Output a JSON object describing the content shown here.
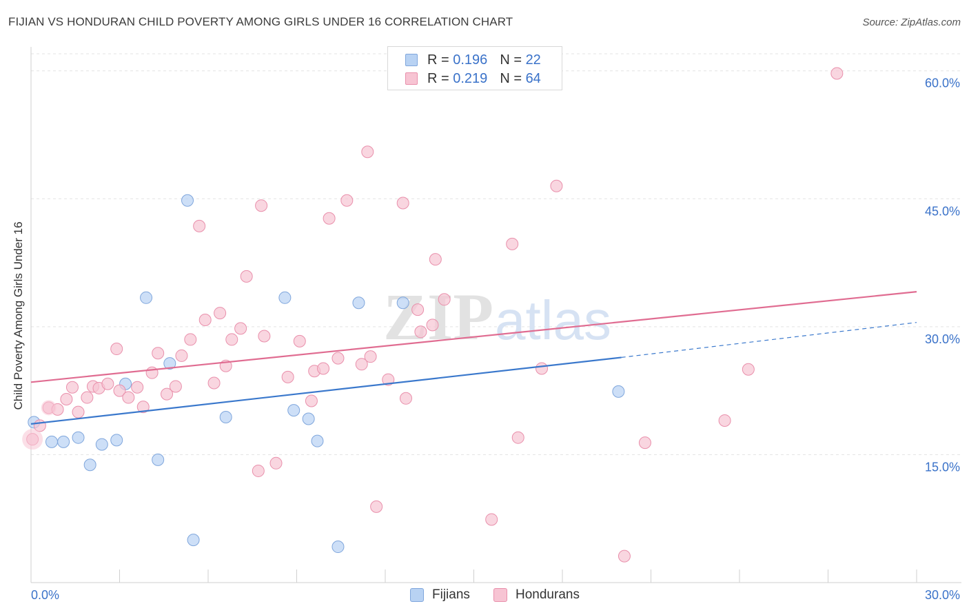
{
  "title": "FIJIAN VS HONDURAN CHILD POVERTY AMONG GIRLS UNDER 16 CORRELATION CHART",
  "source": "Source: ZipAtlas.com",
  "watermark": {
    "zip": "ZIP",
    "atlas": "atlas"
  },
  "legend": {
    "rows": [
      {
        "r_label": "R =",
        "r_value": "0.196",
        "n_label": "N =",
        "n_value": "22"
      },
      {
        "r_label": "R =",
        "r_value": "0.219",
        "n_label": "N =",
        "n_value": "64"
      }
    ]
  },
  "bottom_legend": [
    "Fijians",
    "Hondurans"
  ],
  "colors": {
    "fijian_fill": "#b8d2f3",
    "fijian_stroke": "#7fa6dc",
    "fijian_line": "#3a78cc",
    "honduran_fill": "#f7c4d3",
    "honduran_stroke": "#e98fab",
    "honduran_line": "#e06c91",
    "tick_label": "#3a72c9",
    "grid": "#e3e3e3"
  },
  "chart_data": {
    "type": "scatter",
    "title": "FIJIAN VS HONDURAN CHILD POVERTY AMONG GIRLS UNDER 16 CORRELATION CHART",
    "xlabel": "",
    "ylabel": "Child Poverty Among Girls Under 16",
    "xlim": [
      0,
      30
    ],
    "ylim": [
      0,
      62
    ],
    "x_tick_labels": [
      "0.0%",
      "30.0%"
    ],
    "y_ticks": [
      15,
      30,
      45,
      60
    ],
    "y_tick_labels": [
      "15.0%",
      "30.0%",
      "45.0%",
      "60.0%"
    ],
    "grid": true,
    "legend_position": "top-center",
    "series": [
      {
        "name": "Fijians",
        "points": [
          [
            0.1,
            18.8
          ],
          [
            0.7,
            16.5
          ],
          [
            1.1,
            16.5
          ],
          [
            1.6,
            17.0
          ],
          [
            2.0,
            13.8
          ],
          [
            2.4,
            16.2
          ],
          [
            2.9,
            16.7
          ],
          [
            3.2,
            23.3
          ],
          [
            3.9,
            33.4
          ],
          [
            4.3,
            14.4
          ],
          [
            4.7,
            25.7
          ],
          [
            5.3,
            44.8
          ],
          [
            5.5,
            5.0
          ],
          [
            6.6,
            19.4
          ],
          [
            8.6,
            33.4
          ],
          [
            8.9,
            20.2
          ],
          [
            9.4,
            19.2
          ],
          [
            9.7,
            16.6
          ],
          [
            10.4,
            4.2
          ],
          [
            11.1,
            32.8
          ],
          [
            12.6,
            32.8
          ],
          [
            19.9,
            22.4
          ]
        ],
        "trend": {
          "x0": 0,
          "y0": 18.6,
          "x1": 20.0,
          "y1": 26.4,
          "dash_to_x": 30,
          "dash_to_y": 30.5
        }
      },
      {
        "name": "Hondurans",
        "points": [
          [
            0.05,
            16.8
          ],
          [
            0.3,
            18.4
          ],
          [
            0.6,
            20.5
          ],
          [
            0.9,
            20.3
          ],
          [
            1.2,
            21.5
          ],
          [
            1.4,
            22.9
          ],
          [
            1.6,
            20.0
          ],
          [
            1.9,
            21.7
          ],
          [
            2.1,
            23.0
          ],
          [
            2.3,
            22.8
          ],
          [
            2.6,
            23.3
          ],
          [
            2.9,
            27.4
          ],
          [
            3.0,
            22.5
          ],
          [
            3.3,
            21.7
          ],
          [
            3.6,
            22.9
          ],
          [
            3.8,
            20.6
          ],
          [
            4.1,
            24.6
          ],
          [
            4.3,
            26.9
          ],
          [
            4.6,
            22.1
          ],
          [
            4.9,
            23.0
          ],
          [
            5.1,
            26.6
          ],
          [
            5.4,
            28.5
          ],
          [
            5.7,
            41.8
          ],
          [
            5.9,
            30.8
          ],
          [
            6.2,
            23.4
          ],
          [
            6.4,
            31.6
          ],
          [
            6.6,
            25.4
          ],
          [
            6.8,
            28.5
          ],
          [
            7.1,
            29.8
          ],
          [
            7.3,
            35.9
          ],
          [
            7.7,
            13.1
          ],
          [
            7.8,
            44.2
          ],
          [
            7.9,
            28.9
          ],
          [
            8.3,
            14.0
          ],
          [
            8.7,
            24.1
          ],
          [
            9.1,
            28.3
          ],
          [
            9.5,
            21.3
          ],
          [
            9.6,
            24.8
          ],
          [
            9.9,
            25.1
          ],
          [
            10.1,
            42.7
          ],
          [
            10.4,
            26.3
          ],
          [
            10.7,
            44.8
          ],
          [
            11.2,
            25.6
          ],
          [
            11.4,
            50.5
          ],
          [
            11.5,
            26.5
          ],
          [
            11.7,
            8.9
          ],
          [
            12.1,
            23.8
          ],
          [
            12.6,
            44.5
          ],
          [
            12.7,
            21.6
          ],
          [
            13.1,
            32.0
          ],
          [
            13.2,
            29.4
          ],
          [
            13.6,
            30.2
          ],
          [
            13.7,
            37.9
          ],
          [
            14.0,
            33.2
          ],
          [
            15.6,
            7.4
          ],
          [
            16.3,
            39.7
          ],
          [
            16.5,
            17.0
          ],
          [
            17.3,
            25.1
          ],
          [
            17.8,
            46.5
          ],
          [
            20.1,
            3.1
          ],
          [
            20.8,
            16.4
          ],
          [
            23.5,
            19.0
          ],
          [
            24.3,
            25.0
          ],
          [
            27.3,
            59.7
          ]
        ],
        "trend": {
          "x0": 0,
          "y0": 23.5,
          "x1": 30,
          "y1": 34.1
        }
      }
    ]
  }
}
